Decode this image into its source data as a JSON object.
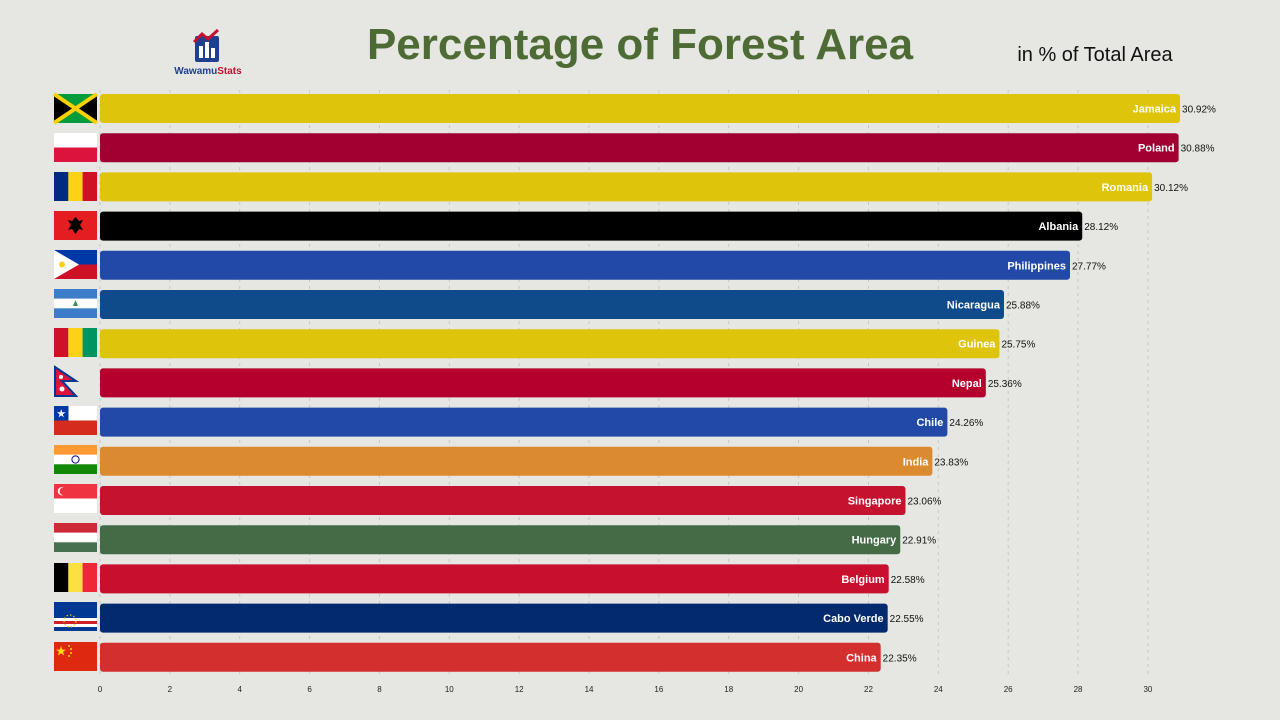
{
  "header": {
    "title": "Percentage of Forest Area",
    "unit": "in % of Total Area",
    "logo_prefix": "Wawamu",
    "logo_suffix": "Stats"
  },
  "chart_data": {
    "type": "bar",
    "orientation": "horizontal",
    "title": "Percentage of Forest Area",
    "subtitle": "in % of Total Area",
    "xlim": [
      0,
      31
    ],
    "ticks": [
      0,
      2,
      4,
      6,
      8,
      10,
      12,
      14,
      16,
      18,
      20,
      22,
      24,
      26,
      28,
      30
    ],
    "value_suffix": "%",
    "grid": true,
    "categories": [
      "Jamaica",
      "Poland",
      "Romania",
      "Albania",
      "Philippines",
      "Nicaragua",
      "Guinea",
      "Nepal",
      "Chile",
      "India",
      "Singapore",
      "Hungary",
      "Belgium",
      "Cabo Verde",
      "China"
    ],
    "values": [
      30.92,
      30.88,
      30.12,
      28.12,
      27.77,
      25.88,
      25.75,
      25.36,
      24.26,
      23.83,
      23.06,
      22.91,
      22.58,
      22.55,
      22.35
    ],
    "colors": [
      "#dfc40c",
      "#a00031",
      "#dfc40c",
      "#000000",
      "#2249a8",
      "#0f4a8a",
      "#dfc40c",
      "#b5002e",
      "#2249a8",
      "#dc8a30",
      "#c4122f",
      "#446b46",
      "#c8102e",
      "#032a6c",
      "#d32f2f"
    ]
  }
}
